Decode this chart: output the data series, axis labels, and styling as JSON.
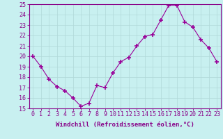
{
  "x": [
    0,
    1,
    2,
    3,
    4,
    5,
    6,
    7,
    8,
    9,
    10,
    11,
    12,
    13,
    14,
    15,
    16,
    17,
    18,
    19,
    20,
    21,
    22,
    23
  ],
  "y": [
    20.0,
    19.0,
    17.8,
    17.1,
    16.7,
    16.0,
    15.2,
    15.5,
    17.2,
    17.0,
    18.4,
    19.5,
    19.9,
    21.0,
    21.9,
    22.1,
    23.5,
    24.9,
    24.9,
    23.3,
    22.8,
    21.6,
    20.8,
    19.5
  ],
  "line_color": "#990099",
  "marker": "+",
  "marker_size": 4,
  "marker_linewidth": 1.2,
  "bg_color": "#c8f0f0",
  "grid_color": "#b0d8d8",
  "ylim": [
    15,
    25
  ],
  "xlim_min": -0.5,
  "xlim_max": 23.5,
  "yticks": [
    15,
    16,
    17,
    18,
    19,
    20,
    21,
    22,
    23,
    24,
    25
  ],
  "xtick_labels": [
    "0",
    "1",
    "2",
    "3",
    "4",
    "5",
    "6",
    "7",
    "8",
    "9",
    "10",
    "11",
    "12",
    "13",
    "14",
    "15",
    "16",
    "17",
    "18",
    "19",
    "20",
    "21",
    "22",
    "23"
  ],
  "xlabel": "Windchill (Refroidissement éolien,°C)",
  "xlabel_color": "#880088",
  "spine_color": "#880088",
  "tick_color": "#880088",
  "label_fontsize": 6.5,
  "tick_fontsize": 6.0
}
